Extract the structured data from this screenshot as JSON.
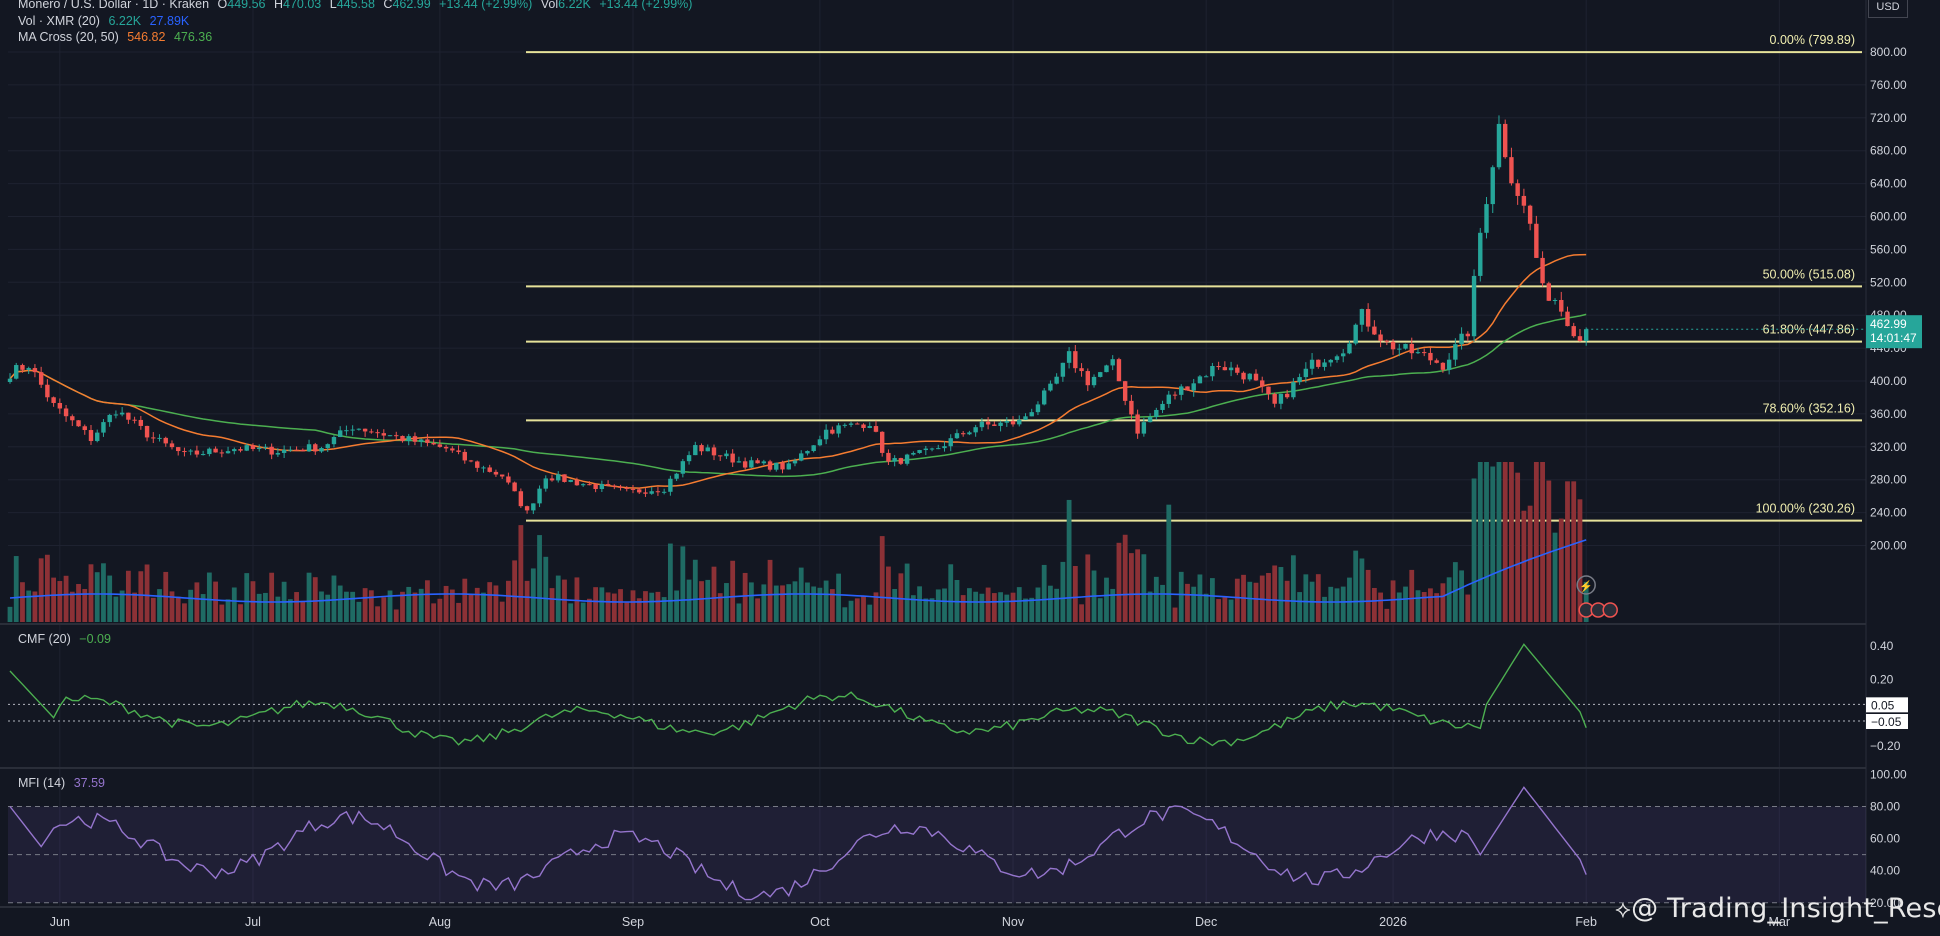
{
  "header": {
    "symbol": "Monero / U.S. Dollar · 1D · Kraken",
    "ohlc": [
      {
        "k": "O",
        "v": "449.56"
      },
      {
        "k": "H",
        "v": "470.03"
      },
      {
        "k": "L",
        "v": "445.58"
      },
      {
        "k": "C",
        "v": "462.99"
      }
    ],
    "change": "+13.44 (+2.99%)",
    "vol_label": "Vol",
    "vol_value": "6.22K",
    "vol_change": "+13.44 (+2.99%)"
  },
  "legends": {
    "vol": {
      "label": "Vol · XMR (20)",
      "v1": "6.22K",
      "v2": "27.89K"
    },
    "ma": {
      "label": "MA Cross (20, 50)",
      "v1": "546.82",
      "v2": "476.36"
    },
    "cmf": {
      "label": "CMF (20)",
      "v1": "−0.09"
    },
    "mfi": {
      "label": "MFI (14)",
      "v1": "37.59"
    }
  },
  "currency": "USD",
  "watermark": "@ Trading_Insight_Rese...",
  "colors": {
    "background": "#131722",
    "up": "#26a69a",
    "down": "#ef5350",
    "ma20": "#f57c31",
    "ma50": "#4caf50",
    "vol_ma": "#2962ff",
    "fib": "#e6e29a",
    "cmf": "#4caf50",
    "mfi": "#9575cd",
    "price_tag": "#26a69a"
  },
  "chart_data": [
    {
      "type": "candlestick",
      "title": "Monero / U.S. Dollar · 1D · Kraken",
      "x_labels": [
        "Jun",
        "Jul",
        "Aug",
        "Sep",
        "Oct",
        "Nov",
        "Dec",
        "2026",
        "Feb",
        "Mar"
      ],
      "ylim": [
        170,
        820
      ],
      "y_ticks": [
        200,
        240,
        280,
        320,
        360,
        400,
        440,
        480,
        520,
        560,
        600,
        640,
        680,
        720,
        760,
        800
      ],
      "y_tick_labels": [
        "200.00",
        "240.00",
        "280.00",
        "320.00",
        "360.00",
        "400.00",
        "440.00",
        "480.00",
        "520.00",
        "560.00",
        "600.00",
        "640.00",
        "680.00",
        "720.00",
        "760.00",
        "800.00"
      ],
      "price_anchors": [
        [
          "2025-05-23",
          410
        ],
        [
          "2025-05-26",
          420
        ],
        [
          "2025-05-30",
          370
        ],
        [
          "2025-06-05",
          330
        ],
        [
          "2025-06-09",
          365
        ],
        [
          "2025-06-15",
          330
        ],
        [
          "2025-06-20",
          310
        ],
        [
          "2025-06-28",
          318
        ],
        [
          "2025-07-05",
          315
        ],
        [
          "2025-07-12",
          320
        ],
        [
          "2025-07-17",
          345
        ],
        [
          "2025-07-25",
          330
        ],
        [
          "2025-08-01",
          318
        ],
        [
          "2025-08-05",
          300
        ],
        [
          "2025-08-10",
          285
        ],
        [
          "2025-08-14",
          240
        ],
        [
          "2025-08-17",
          285
        ],
        [
          "2025-08-23",
          275
        ],
        [
          "2025-08-30",
          265
        ],
        [
          "2025-09-05",
          270
        ],
        [
          "2025-09-10",
          320
        ],
        [
          "2025-09-18",
          300
        ],
        [
          "2025-09-25",
          295
        ],
        [
          "2025-10-01",
          340
        ],
        [
          "2025-10-08",
          350
        ],
        [
          "2025-10-11",
          300
        ],
        [
          "2025-10-18",
          315
        ],
        [
          "2025-10-25",
          345
        ],
        [
          "2025-11-01",
          350
        ],
        [
          "2025-11-06",
          390
        ],
        [
          "2025-11-09",
          430
        ],
        [
          "2025-11-12",
          400
        ],
        [
          "2025-11-16",
          420
        ],
        [
          "2025-11-20",
          340
        ],
        [
          "2025-11-25",
          380
        ],
        [
          "2025-12-03",
          420
        ],
        [
          "2025-12-08",
          405
        ],
        [
          "2025-12-12",
          370
        ],
        [
          "2025-12-18",
          420
        ],
        [
          "2025-12-23",
          440
        ],
        [
          "2025-12-26",
          480
        ],
        [
          "2025-12-30",
          445
        ],
        [
          "2026-01-05",
          430
        ],
        [
          "2026-01-08",
          420
        ],
        [
          "2026-01-12",
          460
        ],
        [
          "2026-01-14",
          580
        ],
        [
          "2026-01-17",
          710
        ],
        [
          "2026-01-19",
          650
        ],
        [
          "2026-01-22",
          590
        ],
        [
          "2026-01-24",
          510
        ],
        [
          "2026-01-26",
          500
        ],
        [
          "2026-01-30",
          450
        ],
        [
          "2026-01-31",
          462.99
        ]
      ],
      "ma_fast": {
        "name": "MA 20",
        "value": 546.82
      },
      "ma_slow": {
        "name": "MA 50",
        "value": 476.36
      },
      "last_price": "462.99",
      "countdown": "14:01:47",
      "fib_levels": [
        {
          "label": "0.00% (799.89)",
          "value": 799.89
        },
        {
          "label": "50.00% (515.08)",
          "value": 515.08
        },
        {
          "label": "61.80% (447.86)",
          "value": 447.86
        },
        {
          "label": "78.60% (352.16)",
          "value": 352.16
        },
        {
          "label": "100.00% (230.26)",
          "value": 230.26
        }
      ],
      "volume_last": "6.22K",
      "volume_ma": "27.89K"
    },
    {
      "type": "line",
      "title": "CMF (20)",
      "ylim": [
        -0.32,
        0.46
      ],
      "y_ticks": [
        0.4,
        0.2,
        -0.2
      ],
      "y_tick_labels": [
        "0.40",
        "0.20",
        "−0.20"
      ],
      "bands": [
        0.05,
        -0.05
      ],
      "band_labels": [
        "0.05",
        "−0.05"
      ],
      "last_value": -0.09
    },
    {
      "type": "line",
      "title": "MFI (14)",
      "ylim": [
        18,
        104
      ],
      "y_ticks": [
        100,
        80,
        60,
        40,
        20
      ],
      "y_tick_labels": [
        "100.00",
        "80.00",
        "60.00",
        "40.00",
        "20.00"
      ],
      "bands": [
        80,
        50,
        20
      ],
      "last_value": 37.59
    }
  ]
}
